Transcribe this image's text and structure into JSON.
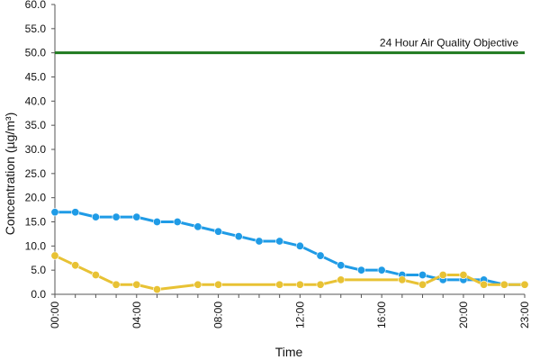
{
  "chart_data": {
    "type": "line",
    "xlabel": "Time",
    "ylabel": "Concentration (µg/m³)",
    "ylim": [
      0,
      60
    ],
    "y_ticks": [
      "0.0",
      "5.0",
      "10.0",
      "15.0",
      "20.0",
      "25.0",
      "30.0",
      "35.0",
      "40.0",
      "45.0",
      "50.0",
      "55.0",
      "60.0"
    ],
    "x_tick_labels": [
      "00:00",
      "04:00",
      "08:00",
      "12:00",
      "16:00",
      "20:00",
      "23:00"
    ],
    "x_tick_hours": [
      0,
      4,
      8,
      12,
      16,
      20,
      23
    ],
    "x": [
      0,
      1,
      2,
      3,
      4,
      5,
      6,
      7,
      8,
      9,
      10,
      11,
      12,
      13,
      14,
      15,
      16,
      17,
      18,
      19,
      20,
      21,
      22,
      23
    ],
    "series": [
      {
        "color": "#1f9be6",
        "values": [
          17,
          17,
          16,
          16,
          16,
          15,
          15,
          14,
          13,
          12,
          11,
          11,
          10,
          8,
          6,
          5,
          5,
          4,
          4,
          3,
          3,
          3,
          2,
          2
        ]
      },
      {
        "color": "#e8c234",
        "points": [
          [
            0,
            8
          ],
          [
            1,
            6
          ],
          [
            2,
            4
          ],
          [
            3,
            2
          ],
          [
            4,
            2
          ],
          [
            5,
            1
          ],
          [
            7,
            2
          ],
          [
            8,
            2
          ],
          [
            11,
            2
          ],
          [
            12,
            2
          ],
          [
            13,
            2
          ],
          [
            14,
            3
          ],
          [
            17,
            3
          ],
          [
            18,
            2
          ],
          [
            19,
            4
          ],
          [
            20,
            4
          ],
          [
            21,
            2
          ],
          [
            22,
            2
          ],
          [
            23,
            2
          ]
        ]
      }
    ],
    "reference_line": {
      "value": 50,
      "label": "24 Hour Air Quality Objective",
      "color": "#1f7a1f"
    }
  }
}
